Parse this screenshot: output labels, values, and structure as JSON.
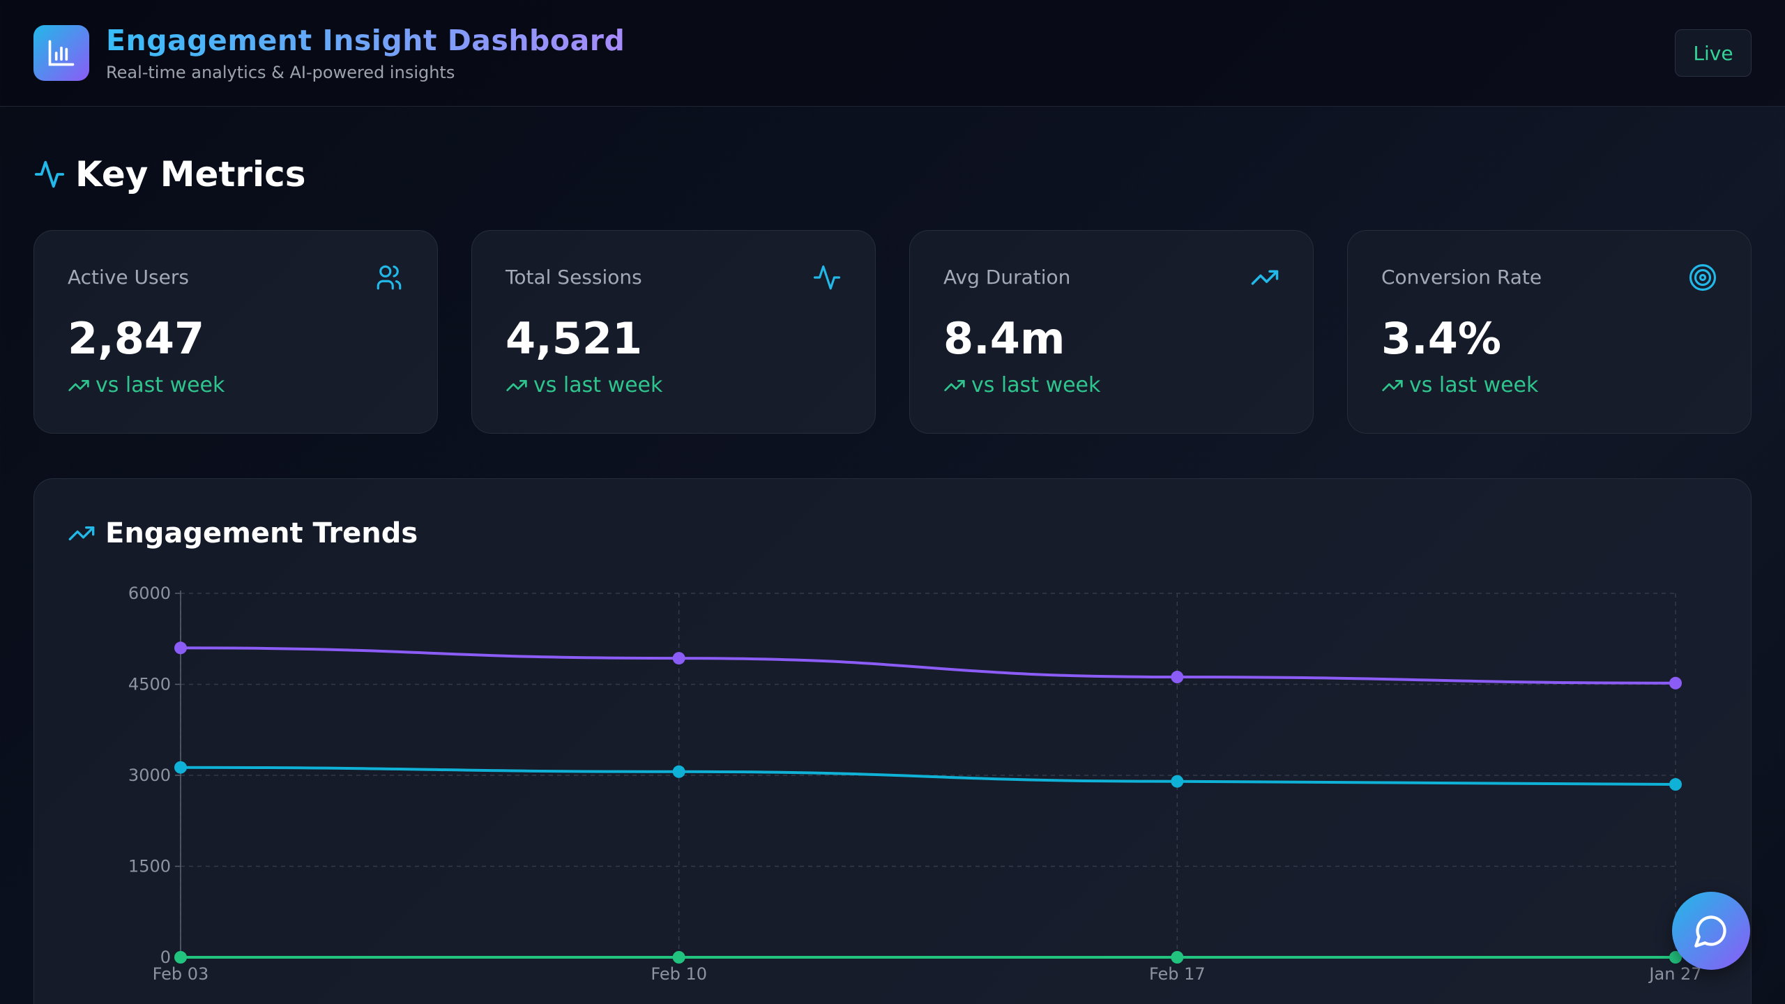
{
  "header": {
    "title": "Engagement Insight Dashboard",
    "subtitle": "Real-time analytics & AI-powered insights",
    "live_label": "Live",
    "logo_icon": "bar-chart-icon"
  },
  "metrics": {
    "title": "Key Metrics",
    "icon": "activity-icon",
    "cards": [
      {
        "label": "Active Users",
        "value": "2,847",
        "trend": "vs last week",
        "icon": "users-icon"
      },
      {
        "label": "Total Sessions",
        "value": "4,521",
        "trend": "vs last week",
        "icon": "activity-icon"
      },
      {
        "label": "Avg Duration",
        "value": "8.4m",
        "trend": "vs last week",
        "icon": "trending-up-icon"
      },
      {
        "label": "Conversion Rate",
        "value": "3.4%",
        "trend": "vs last week",
        "icon": "target-icon"
      }
    ]
  },
  "chart_panel": {
    "title": "Engagement Trends",
    "icon": "trending-up-icon"
  },
  "chart_data": {
    "type": "line",
    "categories": [
      "Feb 03",
      "Feb 10",
      "Feb 17",
      "Jan 27"
    ],
    "ylim": [
      0,
      6000
    ],
    "yticks": [
      0,
      1500,
      3000,
      4500,
      6000
    ],
    "grid": true,
    "series": [
      {
        "values": [
          5100,
          4930,
          4620,
          4520
        ],
        "color": "#8b5cf6"
      },
      {
        "values": [
          3130,
          3060,
          2900,
          2850
        ],
        "color": "#0fb2d6"
      },
      {
        "values": [
          0,
          0,
          0,
          0
        ],
        "color": "#22c37f"
      }
    ]
  },
  "chat_button": {
    "icon": "chat-icon"
  }
}
